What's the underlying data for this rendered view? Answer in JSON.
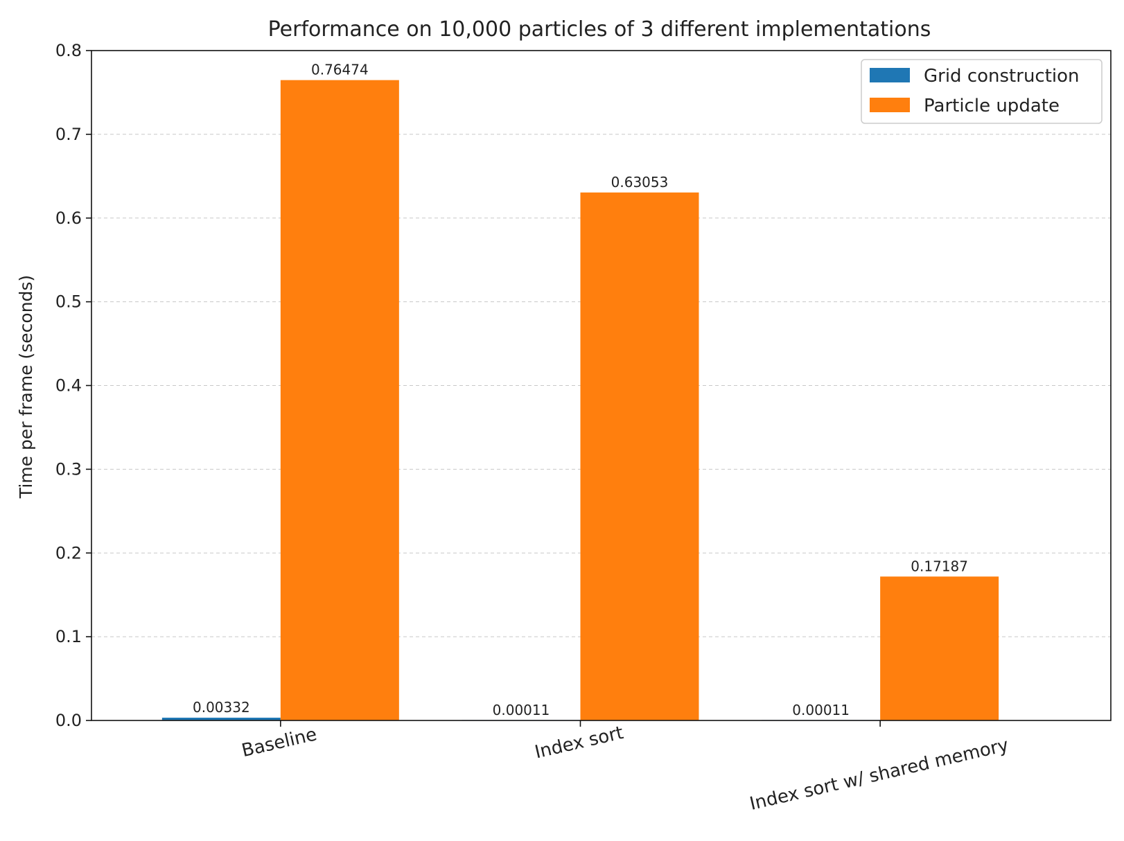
{
  "chart_data": {
    "type": "bar",
    "title": "Performance on 10,000 particles of 3 different implementations",
    "xlabel": "",
    "ylabel": "Time per frame (seconds)",
    "categories": [
      "Baseline",
      "Index sort",
      "Index sort w/ shared memory"
    ],
    "series": [
      {
        "name": "Grid construction",
        "color": "#1f77b4",
        "values": [
          0.00332,
          0.00011,
          0.00011
        ],
        "labels": [
          "0.00332",
          "0.00011",
          "0.00011"
        ]
      },
      {
        "name": "Particle update",
        "color": "#ff7f0e",
        "values": [
          0.76474,
          0.63053,
          0.17187
        ],
        "labels": [
          "0.76474",
          "0.63053",
          "0.17187"
        ]
      }
    ],
    "ylim": [
      0,
      0.8
    ],
    "yticks": [
      "0.0",
      "0.1",
      "0.2",
      "0.3",
      "0.4",
      "0.5",
      "0.6",
      "0.7",
      "0.8"
    ],
    "grid": true,
    "legend_position": "top-right"
  }
}
